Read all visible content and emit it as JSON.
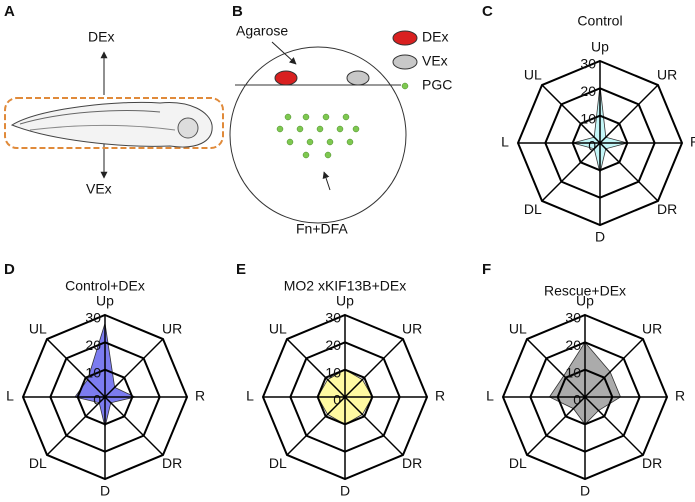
{
  "panel_labels": [
    "A",
    "B",
    "C",
    "D",
    "E",
    "F"
  ],
  "diagram_a": {
    "up": "DEx",
    "down": "VEx"
  },
  "diagram_b": {
    "agarose": "Agarose",
    "legend": [
      "DEx",
      "VEx",
      "PGC"
    ],
    "bottom": "Fn+DFA"
  },
  "chart_data": [
    {
      "type": "radar",
      "title": "Control",
      "categories": [
        "Up",
        "UR",
        "R",
        "DR",
        "D",
        "DL",
        "L",
        "UL"
      ],
      "values": [
        21,
        3,
        10,
        3,
        11,
        3,
        10,
        3
      ],
      "color": "#c4f7f8",
      "rlim": [
        0,
        30
      ],
      "rticks": [
        0,
        10,
        20,
        30
      ]
    },
    {
      "type": "radar",
      "title": "Control+DEx",
      "categories": [
        "Up",
        "UR",
        "R",
        "DR",
        "D",
        "DL",
        "L",
        "UL"
      ],
      "values": [
        27,
        5,
        11,
        3,
        11,
        3,
        11,
        9
      ],
      "color": "#7c7cf0",
      "rlim": [
        0,
        30
      ],
      "rticks": [
        0,
        10,
        20,
        30
      ]
    },
    {
      "type": "radar",
      "title": "MO2 xKIF13B+DEx",
      "categories": [
        "Up",
        "UR",
        "R",
        "DR",
        "D",
        "DL",
        "L",
        "UL"
      ],
      "values": [
        10,
        9,
        10,
        9,
        10,
        9,
        10,
        9
      ],
      "color": "#fffaa2",
      "rlim": [
        0,
        30
      ],
      "rticks": [
        0,
        10,
        20,
        30
      ]
    },
    {
      "type": "radar",
      "title": "Rescue+DEx",
      "categories": [
        "Up",
        "UR",
        "R",
        "DR",
        "D",
        "DL",
        "L",
        "UL"
      ],
      "values": [
        20,
        13,
        13,
        7,
        10,
        6,
        13,
        11
      ],
      "color": "#ababab",
      "rlim": [
        0,
        30
      ],
      "rticks": [
        0,
        10,
        20,
        30
      ]
    }
  ]
}
